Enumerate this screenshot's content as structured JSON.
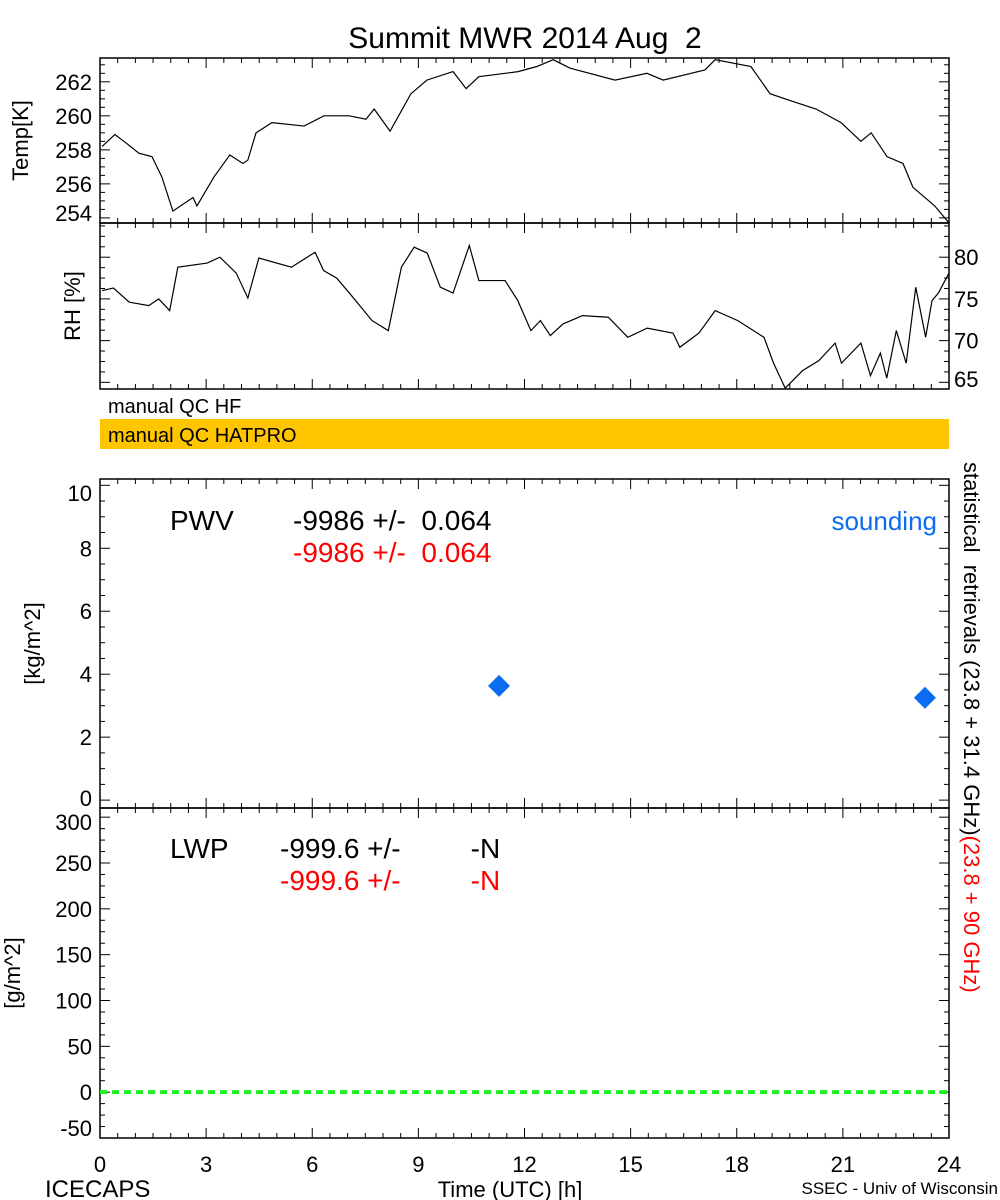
{
  "title": "Summit MWR 2014 Aug  2",
  "footer": {
    "left": "ICECAPS",
    "center": "Time (UTC) [h]",
    "right": "SSEC - Univ of Wisconsin"
  },
  "qc": {
    "hf_label": "manual QC HF",
    "hatpro_label": "manual QC HATPRO",
    "hatpro_color": "#ffc600"
  },
  "pwv_text": {
    "label": "PWV",
    "black": "-9986 +/-  0.064",
    "red": "-9986 +/-  0.064",
    "sounding": "sounding"
  },
  "lwp_text": {
    "label": "LWP",
    "black": "-999.6 +/-         -N",
    "red": "-999.6 +/-         -N"
  },
  "right_label": {
    "black": "statistical  retrievals (23.8 + 31.4 GHz)",
    "red": "(23.8 + 90 GHz)"
  },
  "colors": {
    "red": "#ff0000",
    "sounding": "#0a6cf0",
    "zero_line": "#22ee22"
  },
  "chart_data": [
    {
      "type": "line",
      "name": "temperature",
      "ylabel": "Temp[K]",
      "xlim": [
        0,
        24
      ],
      "ylim": [
        253.7,
        263.4
      ],
      "yticks": [
        254,
        256,
        258,
        260,
        262
      ],
      "x": [
        0.06,
        0.42,
        0.74,
        1.1,
        1.47,
        1.75,
        2.06,
        2.63,
        2.74,
        3.22,
        3.67,
        4.04,
        4.18,
        4.41,
        4.86,
        5.77,
        6.33,
        7.04,
        7.52,
        7.75,
        8.2,
        8.79,
        9.24,
        9.98,
        10.35,
        10.71,
        11.82,
        12.35,
        12.81,
        13.29,
        14.56,
        15.46,
        15.92,
        17.1,
        17.39,
        18.4,
        18.94,
        19.51,
        20.24,
        20.95,
        21.51,
        21.8,
        22.25,
        22.7,
        22.98,
        23.6,
        24
      ],
      "y": [
        258.2,
        258.9,
        258.4,
        257.8,
        257.6,
        256.4,
        254.4,
        255.2,
        254.7,
        256.4,
        257.7,
        257.2,
        257.4,
        259.0,
        259.6,
        259.4,
        260.0,
        260.0,
        259.8,
        260.4,
        259.1,
        261.3,
        262.1,
        262.6,
        261.6,
        262.3,
        262.6,
        262.9,
        263.3,
        262.8,
        262.1,
        262.5,
        262.1,
        262.7,
        263.3,
        262.9,
        261.3,
        260.9,
        260.4,
        259.6,
        258.5,
        259.0,
        257.6,
        257.2,
        255.8,
        254.7,
        253.7
      ]
    },
    {
      "type": "line",
      "name": "relative-humidity",
      "ylabel": "RH [%]",
      "xlim": [
        0,
        24
      ],
      "ylim": [
        64.2,
        84.1
      ],
      "yticks": [
        65,
        70,
        75,
        80
      ],
      "x": [
        0.06,
        0.38,
        0.83,
        1.38,
        1.66,
        1.97,
        2.2,
        3.03,
        3.39,
        3.85,
        4.18,
        4.49,
        5.41,
        6.08,
        6.32,
        6.69,
        7.05,
        7.69,
        8.15,
        8.52,
        8.88,
        9.25,
        9.62,
        9.98,
        10.44,
        10.71,
        11.45,
        11.81,
        12.18,
        12.45,
        12.73,
        13.09,
        13.64,
        14.37,
        14.92,
        15.47,
        16.2,
        16.39,
        16.93,
        17.39,
        18.03,
        18.77,
        19.04,
        19.37,
        19.86,
        20.32,
        20.78,
        20.96,
        21.51,
        21.78,
        22.06,
        22.24,
        22.51,
        22.79,
        23.06,
        23.34,
        23.52,
        23.7,
        24
      ],
      "y": [
        76.0,
        76.3,
        74.6,
        74.2,
        75.0,
        73.6,
        78.8,
        79.3,
        80.0,
        78.1,
        75.1,
        79.9,
        78.8,
        80.6,
        78.4,
        77.5,
        75.7,
        72.4,
        71.2,
        78.8,
        81.2,
        80.5,
        76.4,
        75.7,
        81.4,
        77.2,
        77.2,
        74.8,
        71.2,
        72.4,
        70.6,
        72.0,
        73.0,
        72.8,
        70.4,
        71.5,
        70.9,
        69.2,
        70.9,
        73.6,
        72.4,
        70.4,
        67.3,
        64.3,
        66.4,
        67.6,
        69.7,
        67.3,
        69.7,
        65.8,
        68.5,
        65.5,
        71.2,
        67.3,
        76.4,
        70.4,
        74.8,
        75.7,
        78.1
      ]
    },
    {
      "type": "scatter",
      "name": "pwv-sounding",
      "ylabel": "[kg/m^2]",
      "xlim": [
        0,
        24
      ],
      "ylim": [
        -0.25,
        10.2
      ],
      "yticks": [
        0,
        2,
        4,
        6,
        8,
        10
      ],
      "x": [
        11.28,
        23.32
      ],
      "y": [
        3.63,
        3.25
      ]
    },
    {
      "type": "line",
      "name": "lwp-zero",
      "ylabel": "[g/m^2]",
      "xlim": [
        0,
        24
      ],
      "ylim": [
        -50,
        310
      ],
      "yticks": [
        -50,
        0,
        50,
        100,
        150,
        200,
        250,
        300
      ],
      "x": [
        0,
        24
      ],
      "y": [
        0,
        0
      ]
    }
  ],
  "xticks": [
    0,
    3,
    6,
    9,
    12,
    15,
    18,
    21,
    24
  ]
}
